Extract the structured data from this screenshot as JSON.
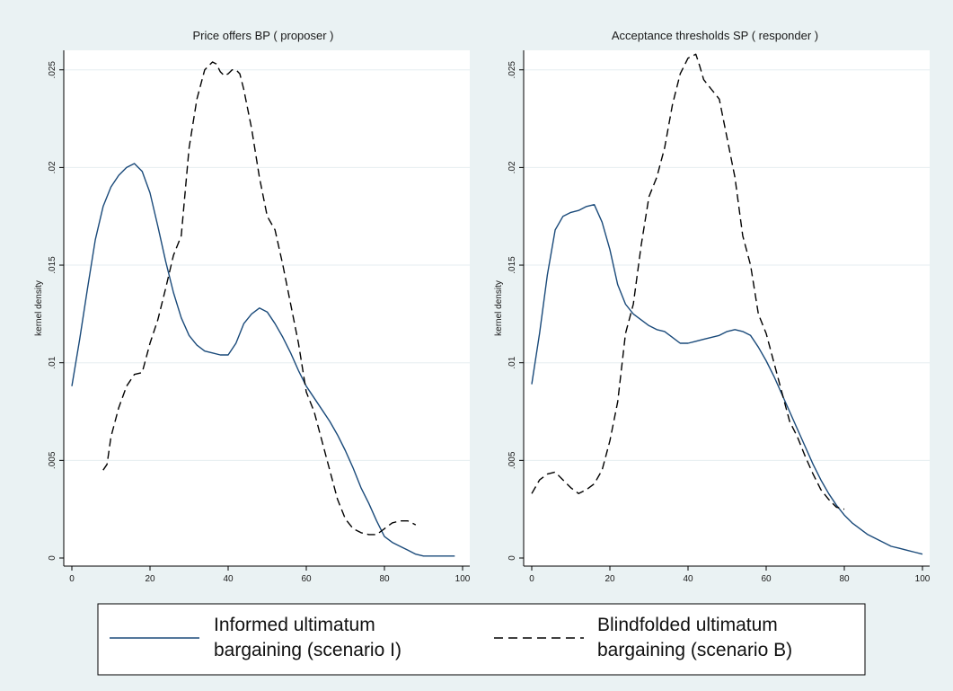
{
  "colors": {
    "outer_background": "#eaf2f3",
    "plot_background": "#ffffff",
    "gridline": "#e6eef0",
    "series_informed": "#1a4a7a",
    "series_blindfolded": "#000000"
  },
  "chart_data": [
    {
      "type": "line",
      "title": "Price offers BP ( proposer )",
      "xlabel": "",
      "ylabel": "kernel density",
      "xlim": [
        0,
        100
      ],
      "ylim": [
        0,
        0.026
      ],
      "x_ticks": [
        0,
        20,
        40,
        60,
        80,
        100
      ],
      "y_ticks": [
        0,
        0.005,
        0.01,
        0.015,
        0.02,
        0.025
      ],
      "x_tick_labels": [
        "0",
        "20",
        "40",
        "60",
        "80",
        "100"
      ],
      "y_tick_labels": [
        "0",
        ".005",
        ".01",
        ".015",
        ".02",
        ".025"
      ],
      "grid": true,
      "series": [
        {
          "name": "Informed ultimatum bargaining (scenario I)",
          "style": "solid",
          "x": [
            0,
            2,
            4,
            6,
            8,
            10,
            12,
            14,
            16,
            18,
            20,
            22,
            24,
            26,
            28,
            30,
            32,
            34,
            36,
            38,
            40,
            42,
            44,
            46,
            48,
            50,
            52,
            54,
            56,
            58,
            60,
            62,
            64,
            66,
            68,
            70,
            72,
            74,
            76,
            78,
            80,
            82,
            84,
            86,
            88,
            90,
            95,
            98
          ],
          "y": [
            0.0088,
            0.0112,
            0.0138,
            0.0163,
            0.018,
            0.019,
            0.0196,
            0.02,
            0.0202,
            0.0198,
            0.0187,
            0.017,
            0.0152,
            0.0136,
            0.0123,
            0.0114,
            0.0109,
            0.0106,
            0.0105,
            0.0104,
            0.0104,
            0.011,
            0.012,
            0.0125,
            0.0128,
            0.0126,
            0.012,
            0.0113,
            0.0105,
            0.0096,
            0.0088,
            0.0082,
            0.0076,
            0.007,
            0.0063,
            0.0055,
            0.0046,
            0.0036,
            0.0028,
            0.0019,
            0.0011,
            0.0008,
            0.0006,
            0.0004,
            0.0002,
            0.0001,
            0.0001,
            0.0001
          ]
        },
        {
          "name": "Blindfolded ultimatum bargaining (scenario B)",
          "style": "dashed",
          "x": [
            8,
            9,
            10,
            12,
            14,
            16,
            18,
            20,
            22,
            24,
            26,
            28,
            30,
            32,
            34,
            36,
            37,
            38,
            39,
            40,
            41,
            42,
            43,
            44,
            46,
            48,
            50,
            52,
            54,
            56,
            58,
            60,
            62,
            64,
            66,
            68,
            70,
            72,
            74,
            76,
            78,
            80,
            82,
            84,
            86,
            88
          ],
          "y": [
            0.0045,
            0.0048,
            0.0062,
            0.0077,
            0.0088,
            0.0094,
            0.0095,
            0.011,
            0.0122,
            0.0138,
            0.0155,
            0.0165,
            0.021,
            0.0235,
            0.025,
            0.0254,
            0.0253,
            0.0249,
            0.0247,
            0.0248,
            0.025,
            0.025,
            0.0248,
            0.024,
            0.022,
            0.0195,
            0.0175,
            0.0168,
            0.015,
            0.013,
            0.011,
            0.0085,
            0.0075,
            0.006,
            0.0045,
            0.003,
            0.002,
            0.0015,
            0.0013,
            0.0012,
            0.0012,
            0.0015,
            0.0018,
            0.0019,
            0.0019,
            0.0017
          ]
        }
      ]
    },
    {
      "type": "line",
      "title": "Acceptance thresholds SP ( responder )",
      "xlabel": "",
      "ylabel": "kernel density",
      "xlim": [
        0,
        100
      ],
      "ylim": [
        0,
        0.026
      ],
      "x_ticks": [
        0,
        20,
        40,
        60,
        80,
        100
      ],
      "y_ticks": [
        0,
        0.005,
        0.01,
        0.015,
        0.02,
        0.025
      ],
      "x_tick_labels": [
        "0",
        "20",
        "40",
        "60",
        "80",
        "100"
      ],
      "y_tick_labels": [
        "0",
        ".005",
        ".01",
        ".015",
        ".02",
        ".025"
      ],
      "grid": true,
      "series": [
        {
          "name": "Informed ultimatum bargaining (scenario I)",
          "style": "solid",
          "x": [
            0,
            2,
            4,
            6,
            8,
            10,
            12,
            14,
            16,
            18,
            20,
            22,
            24,
            26,
            28,
            30,
            32,
            34,
            36,
            38,
            40,
            42,
            44,
            46,
            48,
            50,
            52,
            54,
            56,
            58,
            60,
            62,
            64,
            66,
            68,
            70,
            72,
            74,
            76,
            78,
            80,
            82,
            84,
            86,
            88,
            90,
            92,
            94,
            96,
            98,
            100
          ],
          "y": [
            0.0089,
            0.0115,
            0.0145,
            0.0168,
            0.0175,
            0.0177,
            0.0178,
            0.018,
            0.0181,
            0.0172,
            0.0158,
            0.014,
            0.013,
            0.0125,
            0.0122,
            0.0119,
            0.0117,
            0.0116,
            0.0113,
            0.011,
            0.011,
            0.0111,
            0.0112,
            0.0113,
            0.0114,
            0.0116,
            0.0117,
            0.0116,
            0.0114,
            0.0108,
            0.0101,
            0.0093,
            0.0084,
            0.0075,
            0.0066,
            0.0057,
            0.0048,
            0.004,
            0.0033,
            0.0027,
            0.0022,
            0.0018,
            0.0015,
            0.0012,
            0.001,
            0.0008,
            0.0006,
            0.0005,
            0.0004,
            0.0003,
            0.0002
          ]
        },
        {
          "name": "Blindfolded ultimatum bargaining (scenario B)",
          "style": "dashed",
          "x": [
            0,
            2,
            4,
            6,
            8,
            10,
            12,
            14,
            16,
            18,
            20,
            22,
            24,
            26,
            28,
            30,
            32,
            34,
            36,
            38,
            40,
            41,
            42,
            43,
            44,
            46,
            48,
            50,
            52,
            54,
            56,
            58,
            60,
            62,
            64,
            66,
            68,
            70,
            72,
            74,
            76,
            78,
            80
          ],
          "y": [
            0.0033,
            0.004,
            0.0043,
            0.0044,
            0.004,
            0.0036,
            0.0033,
            0.0035,
            0.0038,
            0.0045,
            0.006,
            0.008,
            0.0115,
            0.013,
            0.016,
            0.0185,
            0.0195,
            0.021,
            0.0232,
            0.0248,
            0.0256,
            0.0257,
            0.0258,
            0.0252,
            0.0245,
            0.024,
            0.0235,
            0.0215,
            0.0195,
            0.0165,
            0.015,
            0.0125,
            0.0115,
            0.01,
            0.0085,
            0.007,
            0.0062,
            0.0052,
            0.0043,
            0.0035,
            0.003,
            0.0026,
            0.0025
          ]
        }
      ]
    }
  ],
  "legend": {
    "position": "bottom",
    "items": [
      {
        "line1": "Informed ultimatum",
        "line2": "bargaining (scenario I)",
        "style": "solid"
      },
      {
        "line1": "Blindfolded ultimatum",
        "line2": "bargaining (scenario B)",
        "style": "dashed"
      }
    ]
  }
}
